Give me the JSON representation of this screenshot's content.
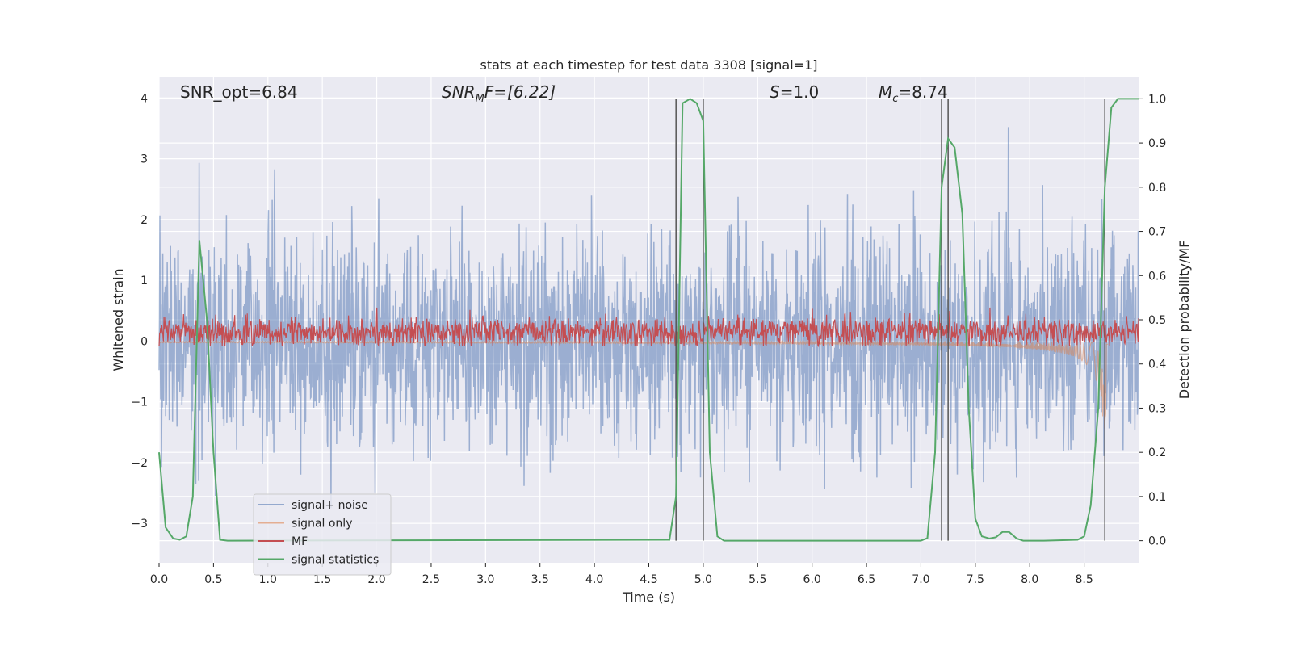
{
  "chart_data": {
    "type": "line",
    "title": "stats at each timestep for test data 3308 [signal=1]",
    "xlabel": "Time (s)",
    "ylabel": "Whitened strain",
    "y2label": "Detection probability/MF",
    "xlim": [
      0.0,
      9.0
    ],
    "ylim": [
      -3.65,
      4.35
    ],
    "y2lim": [
      -0.05,
      1.05
    ],
    "grid": true,
    "legend_position": "lower-left",
    "x_ticks": [
      "0.0",
      "0.5",
      "1.0",
      "1.5",
      "2.0",
      "2.5",
      "3.0",
      "3.5",
      "4.0",
      "4.5",
      "5.0",
      "5.5",
      "6.0",
      "6.5",
      "7.0",
      "7.5",
      "8.0",
      "8.5"
    ],
    "x_tick_values": [
      0.0,
      0.5,
      1.0,
      1.5,
      2.0,
      2.5,
      3.0,
      3.5,
      4.0,
      4.5,
      5.0,
      5.5,
      6.0,
      6.5,
      7.0,
      7.5,
      8.0,
      8.5
    ],
    "y_ticks": [
      "−3",
      "−2",
      "−1",
      "0",
      "1",
      "2",
      "3",
      "4"
    ],
    "y_tick_values": [
      -3,
      -2,
      -1,
      0,
      1,
      2,
      3,
      4
    ],
    "y2_ticks": [
      "0.0",
      "0.1",
      "0.2",
      "0.3",
      "0.4",
      "0.5",
      "0.6",
      "0.7",
      "0.8",
      "0.9",
      "1.0"
    ],
    "y2_tick_values": [
      0.0,
      0.1,
      0.2,
      0.3,
      0.4,
      0.5,
      0.6,
      0.7,
      0.8,
      0.9,
      1.0
    ],
    "annotations": {
      "snr_opt": "SNR_opt=6.84",
      "snr_mf_main": "SNR",
      "snr_mf_sub": "M",
      "snr_mf_rest": "F=[6.22]",
      "s_italic": "S",
      "s_rest": "=1.0",
      "mc_main": "M",
      "mc_sub": "c",
      "mc_rest": "=8.74"
    },
    "series": [
      {
        "name": "signal+ noise",
        "color": "#4c72b0",
        "alpha": 0.5,
        "noise_sigma": 0.9,
        "t_end": 9.0
      },
      {
        "name": "signal only",
        "color": "#dd8452",
        "alpha": 0.5,
        "chirp_end": 8.72,
        "amp_max": 1.6
      },
      {
        "name": "MF",
        "color": "#c44e52",
        "center": 0.15,
        "spread": 0.12
      },
      {
        "name": "signal statistics",
        "color": "#55a868",
        "axis": "right",
        "x": [
          0.0,
          0.06,
          0.13,
          0.19,
          0.25,
          0.31,
          0.37,
          0.44,
          0.5,
          0.56,
          0.63,
          4.69,
          4.75,
          4.81,
          4.88,
          4.94,
          5.0,
          5.06,
          5.13,
          5.19,
          5.25,
          5.31,
          7.0,
          7.06,
          7.13,
          7.19,
          7.25,
          7.31,
          7.38,
          7.44,
          7.5,
          7.56,
          7.63,
          7.69,
          7.75,
          7.81,
          7.88,
          7.94,
          8.0,
          8.06,
          8.13,
          8.44,
          8.5,
          8.56,
          8.63,
          8.69,
          8.75,
          8.81,
          8.88,
          9.0
        ],
        "y": [
          0.2,
          0.03,
          0.005,
          0.002,
          0.01,
          0.1,
          0.68,
          0.5,
          0.2,
          0.002,
          0.0,
          0.002,
          0.1,
          0.99,
          1.0,
          0.99,
          0.95,
          0.2,
          0.01,
          0.0,
          0.0,
          0.0,
          0.0,
          0.006,
          0.2,
          0.8,
          0.91,
          0.89,
          0.74,
          0.3,
          0.05,
          0.01,
          0.005,
          0.008,
          0.02,
          0.02,
          0.005,
          0.0,
          0.0,
          0.0,
          0.0,
          0.002,
          0.01,
          0.08,
          0.3,
          0.8,
          0.98,
          1.0,
          1.0,
          1.0
        ]
      }
    ],
    "vlines": [
      4.75,
      5.0,
      7.19,
      7.25,
      8.69
    ]
  },
  "legend": {
    "items": [
      {
        "label": "signal+ noise",
        "color": "#4c72b0",
        "alpha": 0.55
      },
      {
        "label": "signal only",
        "color": "#dd8452",
        "alpha": 0.6
      },
      {
        "label": "MF",
        "color": "#c44e52",
        "alpha": 1
      },
      {
        "label": "signal statistics",
        "color": "#55a868",
        "alpha": 1
      }
    ]
  },
  "colors": {
    "plot_bg": "#eaeaf2",
    "grid": "#ffffff",
    "vline": "#555555"
  }
}
